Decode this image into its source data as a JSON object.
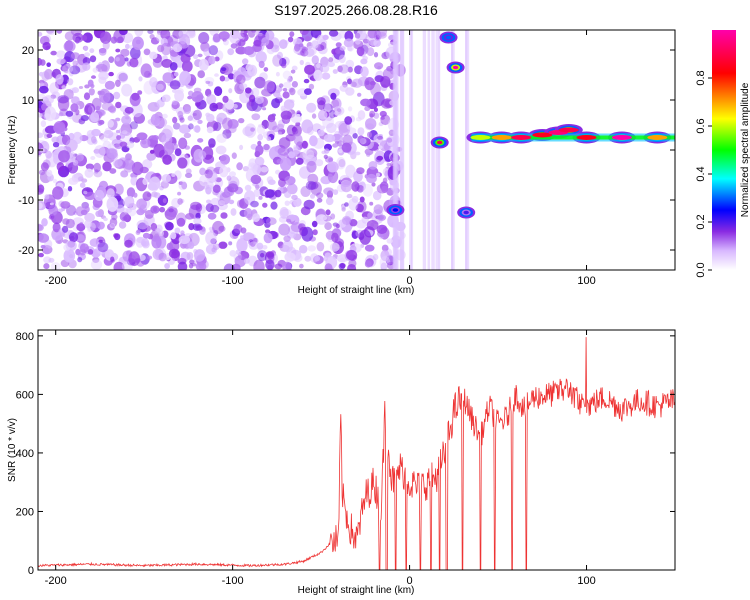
{
  "title": "S197.2025.266.08.28.R16",
  "chart_data": [
    {
      "type": "heatmap",
      "title": "S197.2025.266.08.28.R16",
      "xlabel": "Height of straight line (km)",
      "ylabel": "Frequency (Hz)",
      "xlim": [
        -210,
        150
      ],
      "ylim": [
        -24,
        24
      ],
      "xticks": [
        -200,
        -100,
        0,
        100
      ],
      "yticks": [
        -20,
        -10,
        0,
        10,
        20
      ],
      "colorbar": {
        "label": "Normalized spectral amplitude",
        "range": [
          0.0,
          1.0
        ],
        "ticks": [
          "0.0",
          "0.2",
          "0.4",
          "0.6",
          "0.8"
        ],
        "colors": [
          "#ffffff",
          "#8a2be2",
          "#0000ff",
          "#00ffff",
          "#00ff00",
          "#ffff00",
          "#ff0000",
          "#ff00aa"
        ]
      },
      "noise_region_x": [
        -210,
        -5
      ],
      "features": [
        {
          "x": 17,
          "y": 1.5,
          "value": 0.9
        },
        {
          "x": 26,
          "y": 16.5,
          "value": 1.0
        },
        {
          "x": 22,
          "y": 22.5,
          "value": 0.3
        },
        {
          "x": -8,
          "y": -12,
          "value": 0.25
        },
        {
          "x": 32,
          "y": -12.5,
          "value": 0.2
        },
        {
          "x": 40,
          "y": 2.5,
          "value": 0.6
        },
        {
          "x": 52,
          "y": 2.5,
          "value": 0.7
        },
        {
          "x": 63,
          "y": 2.5,
          "value": 0.9
        },
        {
          "x": 75,
          "y": 3.0,
          "value": 0.85
        },
        {
          "x": 84,
          "y": 3.5,
          "value": 0.95
        },
        {
          "x": 90,
          "y": 4.0,
          "value": 0.9
        },
        {
          "x": 100,
          "y": 2.5,
          "value": 0.85
        },
        {
          "x": 120,
          "y": 2.5,
          "value": 1.0
        },
        {
          "x": 140,
          "y": 2.5,
          "value": 0.7
        }
      ]
    },
    {
      "type": "line",
      "xlabel": "Height of straight line (km)",
      "ylabel": "SNR (10 * v/v)",
      "xlim": [
        -210,
        150
      ],
      "ylim": [
        0,
        820
      ],
      "xticks": [
        -200,
        -100,
        0,
        100
      ],
      "yticks": [
        0,
        200,
        400,
        600,
        800
      ],
      "color": "#ee3333",
      "series": [
        {
          "name": "SNR",
          "x": [
            -210,
            -180,
            -150,
            -120,
            -90,
            -70,
            -60,
            -50,
            -45,
            -40,
            -39,
            -38,
            -36,
            -34,
            -30,
            -25,
            -20,
            -16,
            -14,
            -10,
            -5,
            0,
            5,
            10,
            15,
            20,
            25,
            30,
            35,
            40,
            45,
            50,
            55,
            60,
            65,
            70,
            80,
            90,
            95,
            100,
            110,
            120,
            130,
            140,
            150
          ],
          "y": [
            15,
            20,
            15,
            20,
            15,
            20,
            30,
            60,
            90,
            100,
            560,
            250,
            200,
            150,
            100,
            250,
            300,
            200,
            540,
            300,
            350,
            300,
            280,
            300,
            320,
            400,
            540,
            600,
            520,
            450,
            560,
            500,
            520,
            600,
            550,
            590,
            600,
            620,
            580,
            560,
            590,
            550,
            580,
            560,
            580
          ]
        }
      ]
    }
  ]
}
